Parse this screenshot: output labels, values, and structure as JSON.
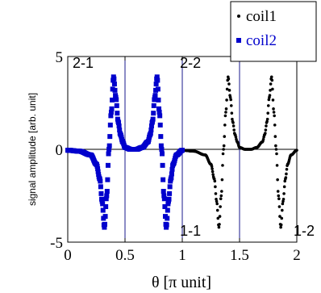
{
  "chart_data": {
    "type": "scatter",
    "xlabel": "θ [π unit]",
    "ylabel": "signal amplitude [arb. unit]",
    "xlim": [
      0,
      2
    ],
    "ylim": [
      -5,
      5
    ],
    "xticks": [
      "0",
      "0.5",
      "1",
      "1.5",
      "2"
    ],
    "yticks": [
      "-5",
      "0",
      "5"
    ],
    "grid": false,
    "vertical_markers": [
      0.5,
      1,
      1.5
    ],
    "legend_position": "top-right",
    "annotations": [
      "2-1",
      "2-2",
      "1-1",
      "1-2"
    ],
    "series": [
      {
        "name": "coil1",
        "color": "#000000",
        "marker": "dot",
        "x": [
          1.0,
          1.1,
          1.2,
          1.25,
          1.28,
          1.3,
          1.32,
          1.34,
          1.36,
          1.38,
          1.4,
          1.42,
          1.44,
          1.46,
          1.48,
          1.5,
          1.55,
          1.6,
          1.65,
          1.7,
          1.72,
          1.74,
          1.76,
          1.78,
          1.8,
          1.82,
          1.84,
          1.86,
          1.88,
          1.9,
          1.92,
          1.95,
          2.0
        ],
        "y": [
          -0.05,
          -0.1,
          -0.3,
          -0.8,
          -1.6,
          -2.8,
          -4.2,
          -2.5,
          0.0,
          2.0,
          3.9,
          2.8,
          1.5,
          0.8,
          0.4,
          0.1,
          0.0,
          0.0,
          0.1,
          0.4,
          0.8,
          1.5,
          2.8,
          3.9,
          2.0,
          0.0,
          -2.5,
          -4.2,
          -2.8,
          -1.6,
          -0.8,
          -0.3,
          -0.05
        ]
      },
      {
        "name": "coil2",
        "color": "#0000cc",
        "marker": "square",
        "x": [
          0.0,
          0.1,
          0.2,
          0.25,
          0.28,
          0.3,
          0.32,
          0.34,
          0.36,
          0.38,
          0.4,
          0.42,
          0.44,
          0.46,
          0.48,
          0.5,
          0.55,
          0.6,
          0.65,
          0.7,
          0.72,
          0.74,
          0.76,
          0.78,
          0.8,
          0.82,
          0.84,
          0.86,
          0.88,
          0.9,
          0.92,
          0.95,
          1.0
        ],
        "y": [
          -0.05,
          -0.1,
          -0.3,
          -0.8,
          -1.6,
          -2.8,
          -4.2,
          -2.5,
          0.0,
          2.0,
          3.9,
          2.8,
          1.5,
          0.8,
          0.4,
          0.1,
          0.0,
          0.0,
          0.1,
          0.4,
          0.8,
          1.5,
          2.8,
          3.9,
          2.0,
          0.0,
          -2.5,
          -4.2,
          -2.8,
          -1.6,
          -0.8,
          -0.3,
          -0.05
        ]
      }
    ]
  }
}
